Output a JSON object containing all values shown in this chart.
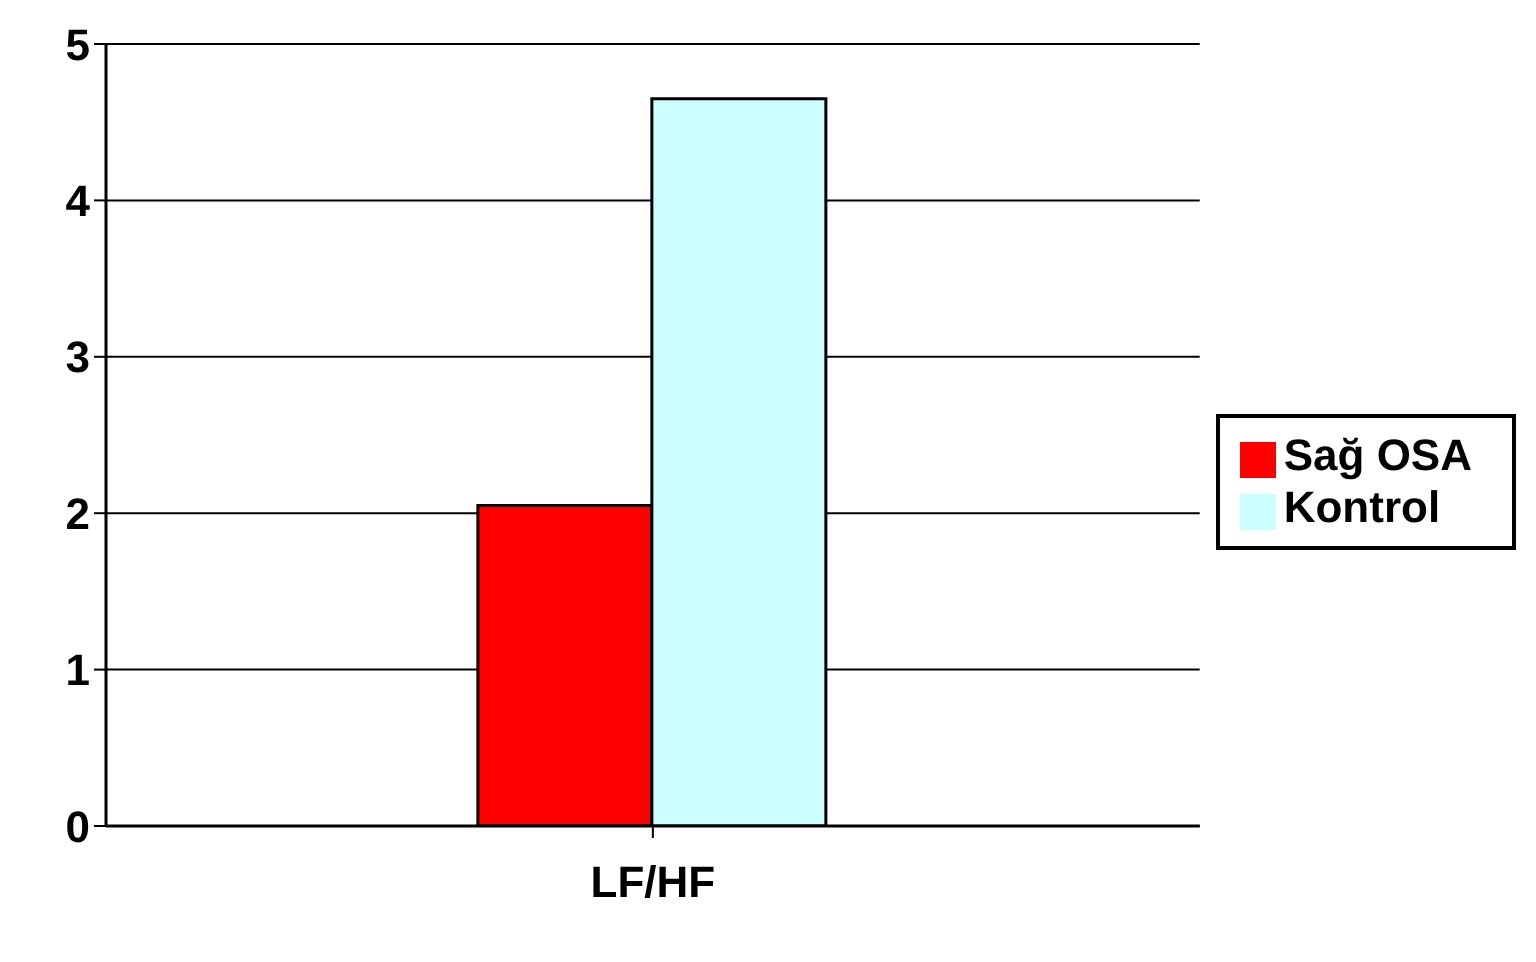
{
  "chart_data": {
    "type": "bar",
    "categories": [
      "LF/HF"
    ],
    "series": [
      {
        "name": "Sağ OSA",
        "color": "#ff0000",
        "values": [
          2.05
        ]
      },
      {
        "name": "Kontrol",
        "color": "#ccffff",
        "values": [
          4.65
        ]
      }
    ],
    "ylim": [
      0,
      5
    ],
    "yticks": [
      0,
      1,
      2,
      3,
      4,
      5
    ],
    "grid": "y",
    "legend": "right"
  }
}
